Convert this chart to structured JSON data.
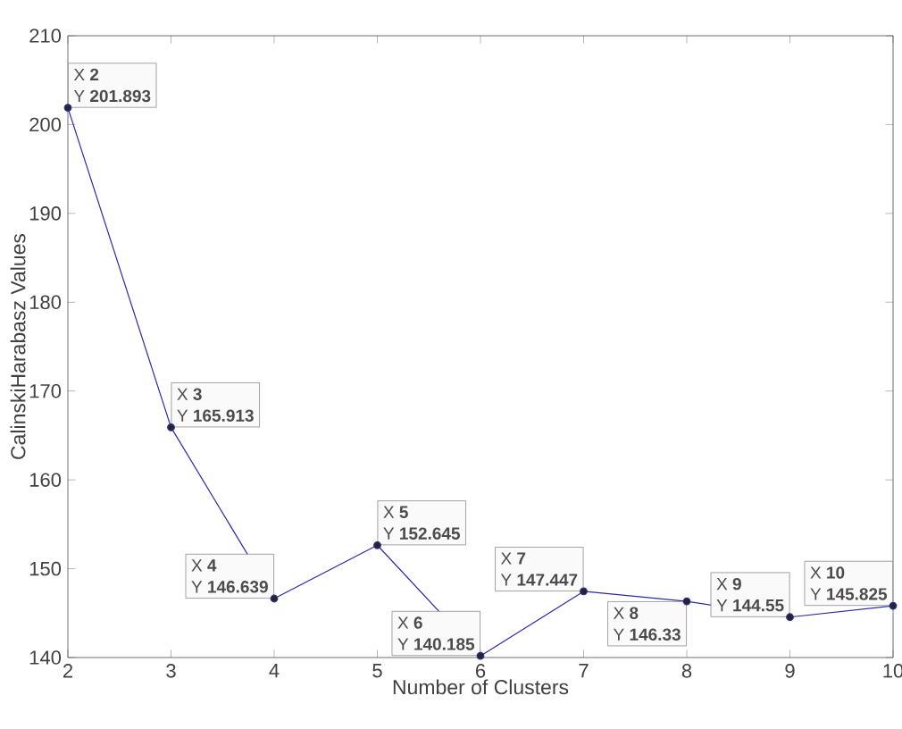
{
  "chart_data": {
    "type": "line",
    "xlabel": "Number of Clusters",
    "ylabel": "CalinskiHarabasz Values",
    "x": [
      2,
      3,
      4,
      5,
      6,
      7,
      8,
      9,
      10
    ],
    "series": [
      {
        "color": "#2a2aa8",
        "values": [
          201.893,
          165.913,
          146.639,
          152.645,
          140.185,
          147.447,
          146.33,
          144.55,
          145.825
        ]
      }
    ],
    "xlim": [
      2,
      10
    ],
    "xticks": [
      2,
      3,
      4,
      5,
      6,
      7,
      8,
      9,
      10
    ],
    "ylim": [
      140,
      210
    ],
    "yticks": [
      140,
      150,
      160,
      170,
      180,
      190,
      200,
      210
    ],
    "marker": "circle",
    "line_style": "solid",
    "grid": false,
    "annotations": [
      "X **2**",
      "Y **201.893**",
      "X **3**",
      "Y **165.913**",
      "X **4**",
      "Y **146.639**",
      "X **5**",
      "Y **152.645**",
      "X **6**",
      "Y **140.185**",
      "X **7**",
      "Y **147.447**",
      "X **8**",
      "Y **146.33**",
      "X **9**",
      "Y **144.55**",
      "X **10**",
      "Y **145.825**"
    ]
  }
}
